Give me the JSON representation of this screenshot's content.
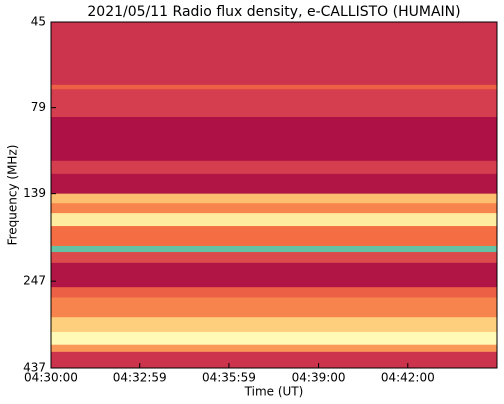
{
  "chart_data": {
    "type": "heatmap",
    "title": "2021/05/11  Radio flux density, e-CALLISTO (HUMAIN)",
    "x_label": "Time (UT)",
    "y_label": "Frequency (MHz)",
    "xlim": [
      16200,
      17100
    ],
    "xticks": [
      {
        "value": 16200,
        "label": "04:30:00"
      },
      {
        "value": 16379,
        "label": "04:32:59"
      },
      {
        "value": 16559,
        "label": "04:35:59"
      },
      {
        "value": 16740,
        "label": "04:39:00"
      },
      {
        "value": 16920,
        "label": "04:42:00"
      }
    ],
    "ylim": [
      45,
      437
    ],
    "yscale": "log",
    "y_inverted": true,
    "yticks": [
      45,
      79,
      139,
      247,
      437
    ],
    "y_edges": [
      45,
      68,
      70,
      84,
      112,
      122,
      139,
      148,
      158,
      172,
      196,
      204,
      219,
      257,
      275,
      313,
      345,
      375,
      393,
      437
    ],
    "values": [
      0.25,
      0.45,
      0.3,
      0.08,
      0.3,
      0.1,
      0.7,
      0.55,
      0.85,
      0.5,
      1.0,
      0.35,
      0.1,
      0.45,
      0.55,
      0.75,
      0.9,
      0.6,
      0.25
    ],
    "colorscale": [
      [
        0,
        "#9e0142"
      ],
      [
        0.3,
        "#d53e4f"
      ],
      [
        0.5,
        "#f46d43"
      ],
      [
        0.65,
        "#fdae61"
      ],
      [
        0.8,
        "#fee08b"
      ],
      [
        0.92,
        "#ffffbf"
      ],
      [
        1,
        "#66c2a5"
      ]
    ]
  }
}
